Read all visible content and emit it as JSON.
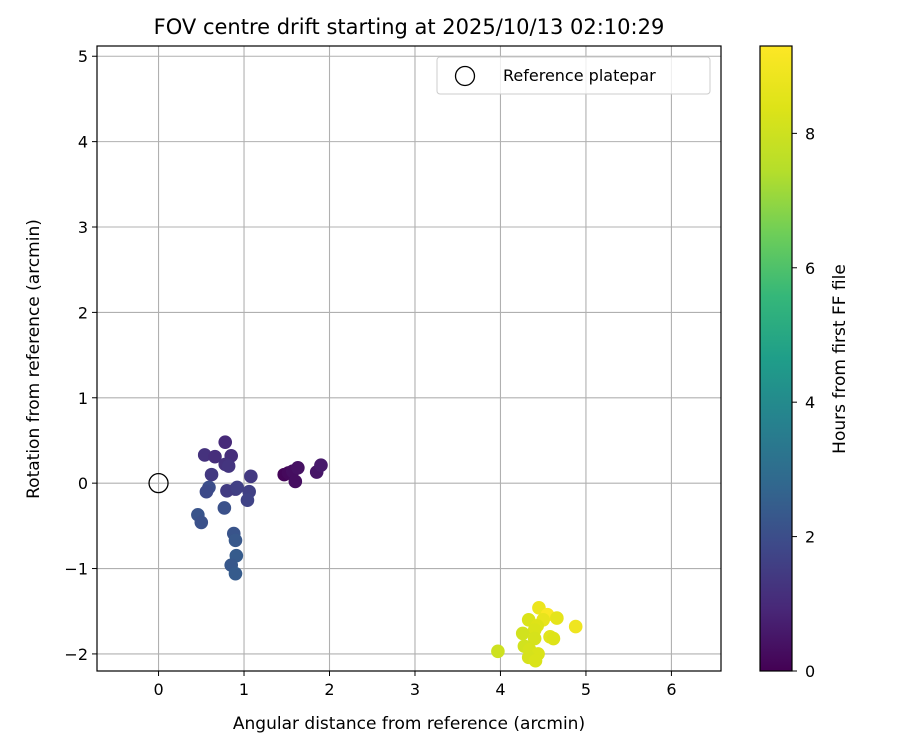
{
  "chart_data": {
    "type": "scatter",
    "title": "FOV centre drift starting at 2025/10/13 02:10:29",
    "xlabel": "Angular distance from reference (arcmin)",
    "ylabel": "Rotation from reference (arcmin)",
    "xlim": [
      -0.72,
      6.58
    ],
    "ylim": [
      -2.2,
      5.12
    ],
    "xticks": [
      0,
      1,
      2,
      3,
      4,
      5,
      6
    ],
    "xtick_labels": [
      "0",
      "1",
      "2",
      "3",
      "4",
      "5",
      "6"
    ],
    "yticks": [
      -2,
      -1,
      0,
      1,
      2,
      3,
      4,
      5
    ],
    "ytick_labels": [
      "−2",
      "−1",
      "0",
      "1",
      "2",
      "3",
      "4",
      "5"
    ],
    "grid": true,
    "legend": {
      "position": "top-right",
      "entries": [
        {
          "label": "Reference platepar",
          "marker": "open-circle"
        }
      ]
    },
    "reference_point": {
      "x": 0,
      "y": 0
    },
    "colorbar": {
      "label": "Hours from first FF file",
      "range": [
        0,
        9.3
      ],
      "ticks": [
        0,
        2,
        4,
        6,
        8
      ],
      "tick_labels": [
        "0",
        "2",
        "4",
        "6",
        "8"
      ],
      "colormap": "viridis"
    },
    "points": [
      {
        "x": 1.47,
        "y": 0.1,
        "t": 0.1
      },
      {
        "x": 1.52,
        "y": 0.12,
        "t": 0.2
      },
      {
        "x": 1.57,
        "y": 0.14,
        "t": 0.3
      },
      {
        "x": 1.63,
        "y": 0.18,
        "t": 0.4
      },
      {
        "x": 1.6,
        "y": 0.02,
        "t": 0.3
      },
      {
        "x": 1.85,
        "y": 0.13,
        "t": 0.5
      },
      {
        "x": 1.9,
        "y": 0.21,
        "t": 0.6
      },
      {
        "x": 0.78,
        "y": 0.48,
        "t": 1.0
      },
      {
        "x": 0.54,
        "y": 0.33,
        "t": 1.2
      },
      {
        "x": 0.66,
        "y": 0.31,
        "t": 1.1
      },
      {
        "x": 0.85,
        "y": 0.32,
        "t": 1.1
      },
      {
        "x": 0.78,
        "y": 0.22,
        "t": 1.2
      },
      {
        "x": 0.82,
        "y": 0.2,
        "t": 1.3
      },
      {
        "x": 0.62,
        "y": 0.1,
        "t": 1.4
      },
      {
        "x": 1.08,
        "y": 0.08,
        "t": 1.4
      },
      {
        "x": 0.8,
        "y": -0.09,
        "t": 1.5
      },
      {
        "x": 0.9,
        "y": -0.07,
        "t": 1.5
      },
      {
        "x": 0.92,
        "y": -0.05,
        "t": 1.6
      },
      {
        "x": 1.06,
        "y": -0.1,
        "t": 1.6
      },
      {
        "x": 1.04,
        "y": -0.2,
        "t": 1.7
      },
      {
        "x": 0.59,
        "y": -0.05,
        "t": 2.0
      },
      {
        "x": 0.56,
        "y": -0.1,
        "t": 1.9
      },
      {
        "x": 0.77,
        "y": -0.29,
        "t": 2.1
      },
      {
        "x": 0.46,
        "y": -0.37,
        "t": 2.2
      },
      {
        "x": 0.5,
        "y": -0.46,
        "t": 2.1
      },
      {
        "x": 0.88,
        "y": -0.59,
        "t": 2.2
      },
      {
        "x": 0.9,
        "y": -0.67,
        "t": 2.3
      },
      {
        "x": 0.91,
        "y": -0.85,
        "t": 2.4
      },
      {
        "x": 0.85,
        "y": -0.96,
        "t": 2.3
      },
      {
        "x": 0.9,
        "y": -1.06,
        "t": 2.4
      },
      {
        "x": 4.45,
        "y": -1.46,
        "t": 8.8
      },
      {
        "x": 4.55,
        "y": -1.54,
        "t": 9.2
      },
      {
        "x": 4.5,
        "y": -1.6,
        "t": 8.7
      },
      {
        "x": 4.66,
        "y": -1.58,
        "t": 8.6
      },
      {
        "x": 4.33,
        "y": -1.6,
        "t": 8.3
      },
      {
        "x": 4.88,
        "y": -1.68,
        "t": 8.9
      },
      {
        "x": 4.43,
        "y": -1.67,
        "t": 8.4
      },
      {
        "x": 4.4,
        "y": -1.72,
        "t": 8.3
      },
      {
        "x": 4.26,
        "y": -1.76,
        "t": 8.1
      },
      {
        "x": 4.4,
        "y": -1.82,
        "t": 8.2
      },
      {
        "x": 4.58,
        "y": -1.8,
        "t": 8.5
      },
      {
        "x": 4.62,
        "y": -1.82,
        "t": 8.4
      },
      {
        "x": 4.28,
        "y": -1.91,
        "t": 8.1
      },
      {
        "x": 4.34,
        "y": -1.95,
        "t": 8.2
      },
      {
        "x": 4.44,
        "y": -2.0,
        "t": 8.3
      },
      {
        "x": 4.33,
        "y": -2.04,
        "t": 8.2
      },
      {
        "x": 4.41,
        "y": -2.08,
        "t": 8.3
      },
      {
        "x": 3.97,
        "y": -1.97,
        "t": 8.0
      }
    ]
  }
}
